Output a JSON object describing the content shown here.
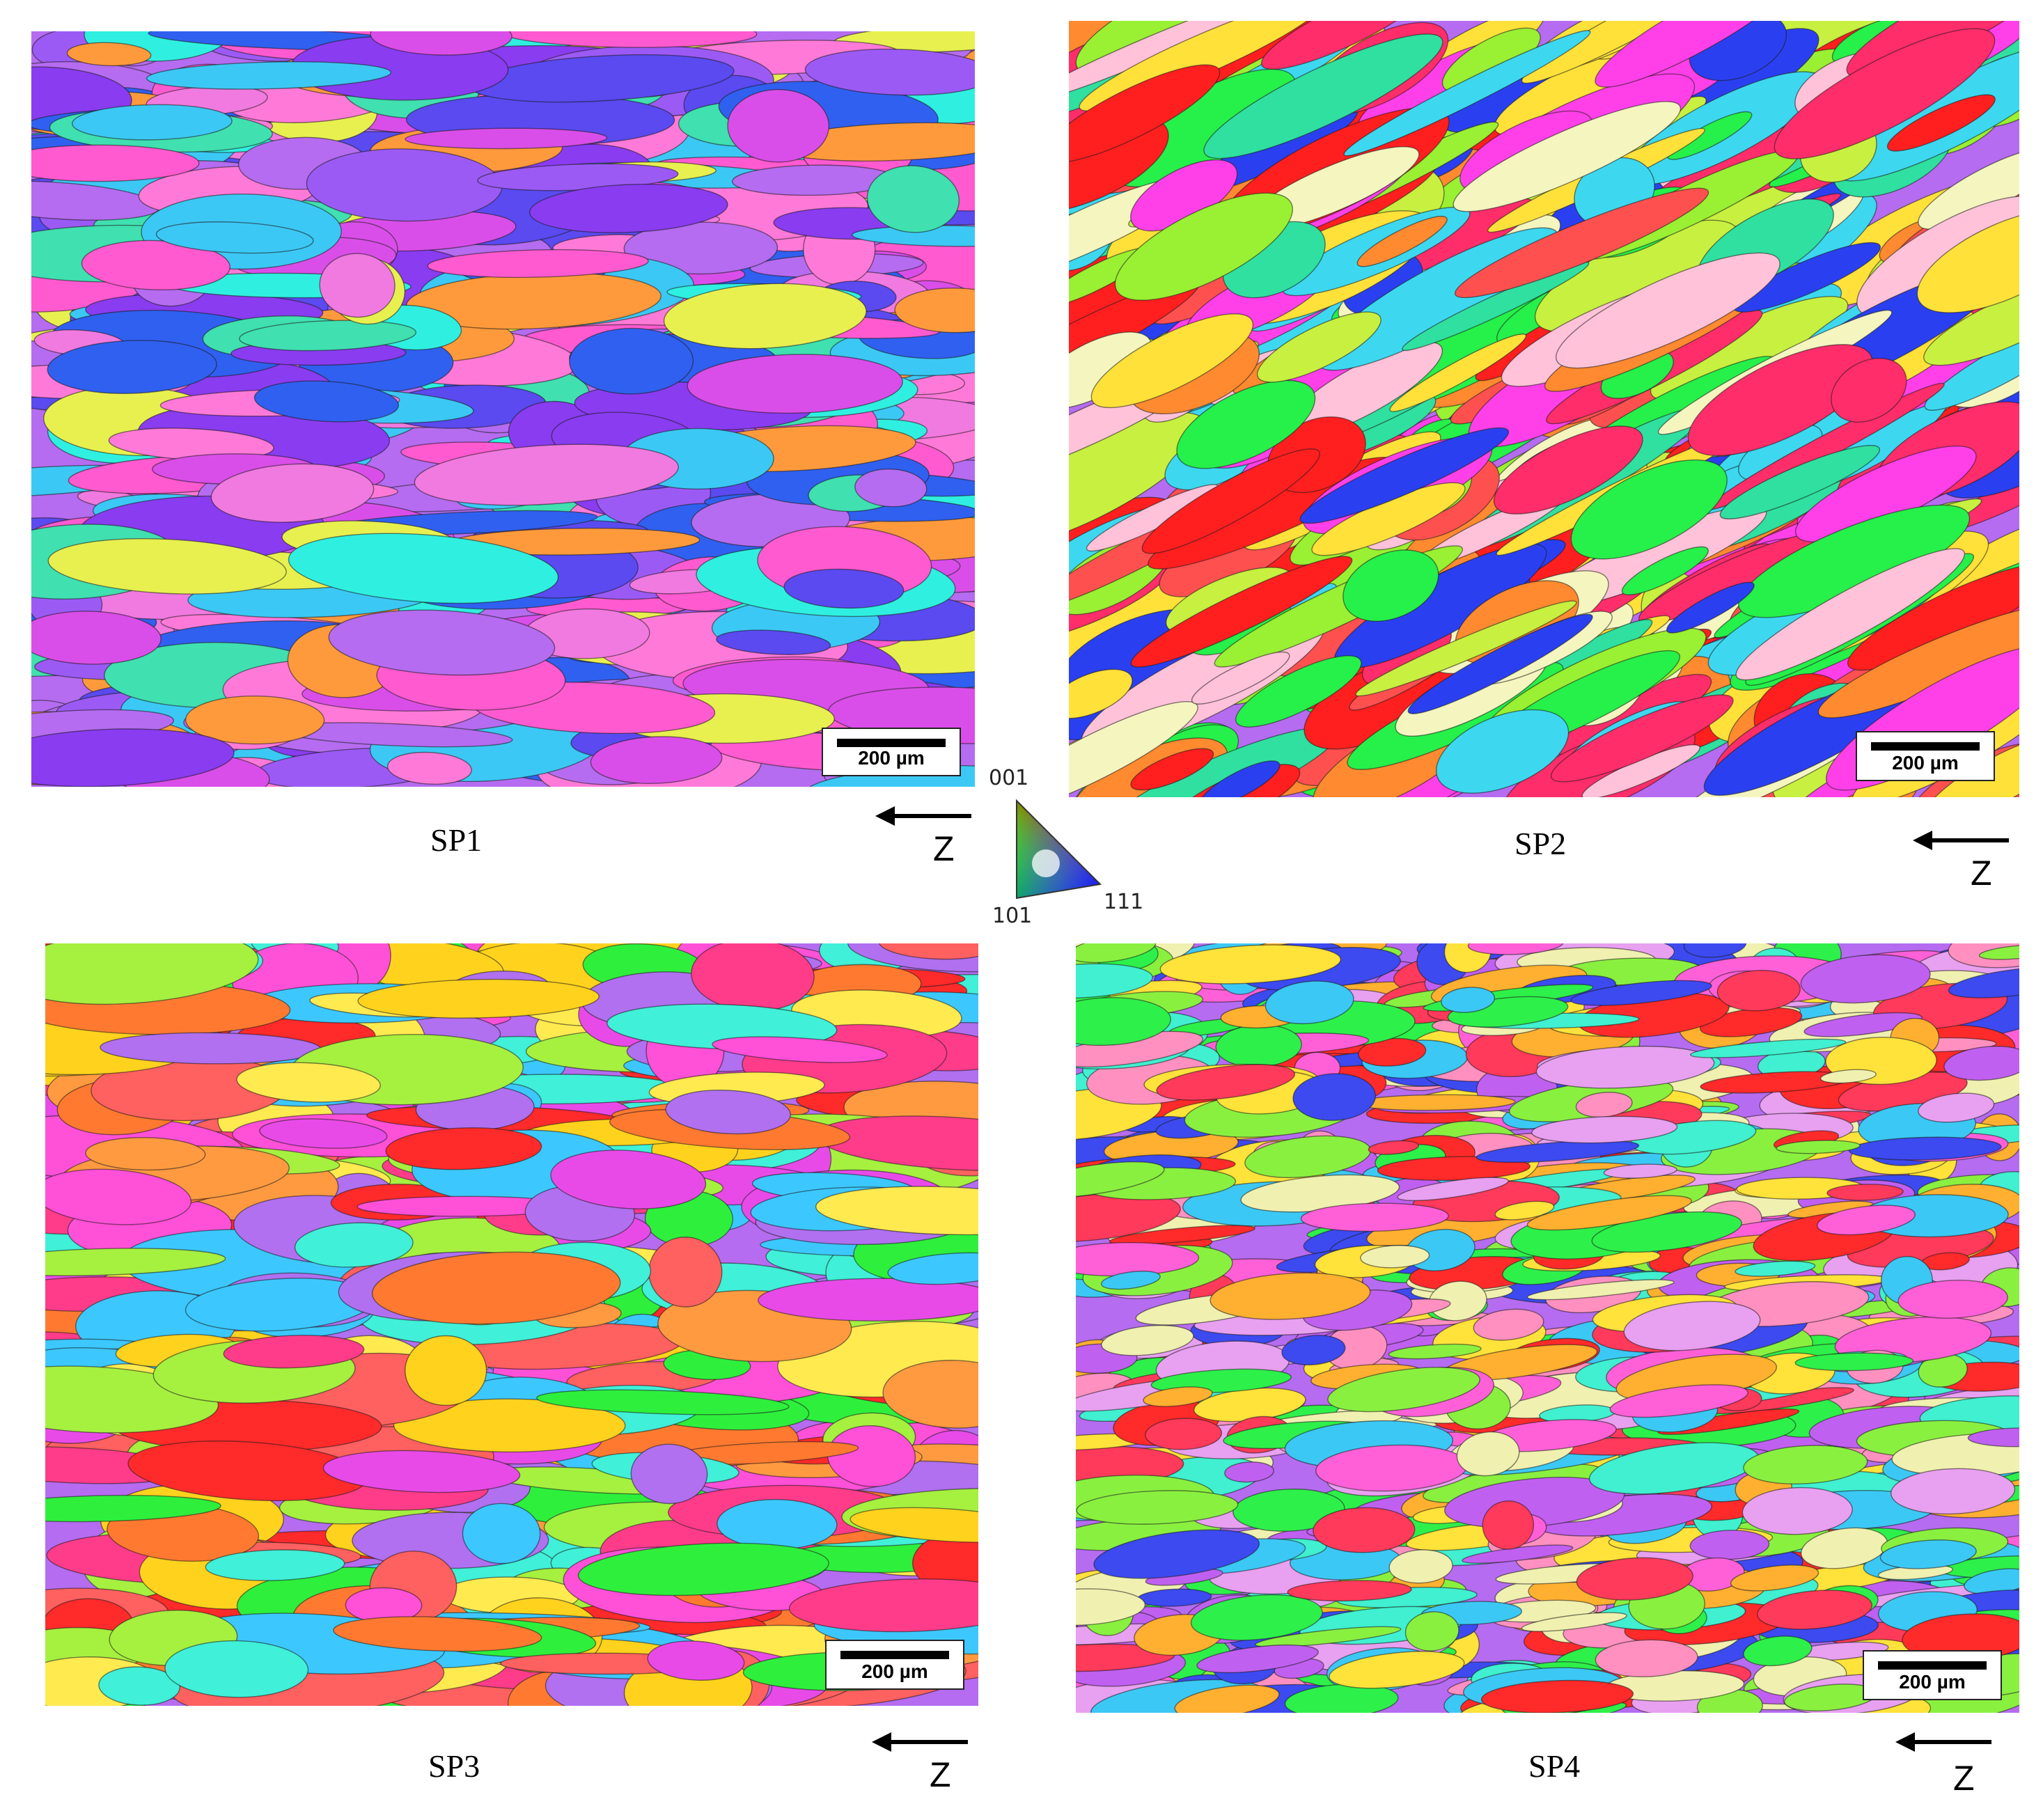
{
  "panels": [
    {
      "id": "SP1",
      "caption": "SP1",
      "scalebar": "200 µm",
      "axis_label": "Z",
      "palette": [
        "#b56cf0",
        "#8a3cf0",
        "#d94ee8",
        "#ff5ad0",
        "#2ff0e0",
        "#3cc8f5",
        "#5a4af0",
        "#3060f0",
        "#ff9a3c",
        "#e8f050",
        "#ff7ad8",
        "#40e0b0",
        "#9c5af5",
        "#f07ae0"
      ]
    },
    {
      "id": "SP2",
      "caption": "SP2",
      "scalebar": "200 µm",
      "axis_label": "Z",
      "palette": [
        "#ff1f1f",
        "#ff2d6a",
        "#26f04a",
        "#9af032",
        "#ffe13a",
        "#ff40e8",
        "#3dd8f0",
        "#2a40f0",
        "#ffc2d8",
        "#ff8a30",
        "#c8f040",
        "#30e0a0",
        "#f5f5c0",
        "#ff5050"
      ]
    },
    {
      "id": "SP3",
      "caption": "SP3",
      "scalebar": "200 µm",
      "axis_label": "Z",
      "palette": [
        "#ff2a2a",
        "#ff7a30",
        "#ffd21e",
        "#2ef03c",
        "#ff3c8a",
        "#ff50d8",
        "#a6f040",
        "#3cc8ff",
        "#ff9a40",
        "#e84ae8",
        "#40f0d8",
        "#ff6060",
        "#b070f0",
        "#ffea50"
      ]
    },
    {
      "id": "SP4",
      "caption": "SP4",
      "scalebar": "200 µm",
      "axis_label": "Z",
      "palette": [
        "#2ef04a",
        "#ff3a5a",
        "#ff60d8",
        "#3cc8f5",
        "#c060f0",
        "#ffb030",
        "#ffe23a",
        "#3c4af0",
        "#ff90c0",
        "#40f0d0",
        "#f0f0b0",
        "#ff2a2a",
        "#8af040",
        "#e8a0f0"
      ]
    }
  ],
  "legend": {
    "top": "001",
    "bottom_left": "101",
    "bottom_right": "111"
  }
}
